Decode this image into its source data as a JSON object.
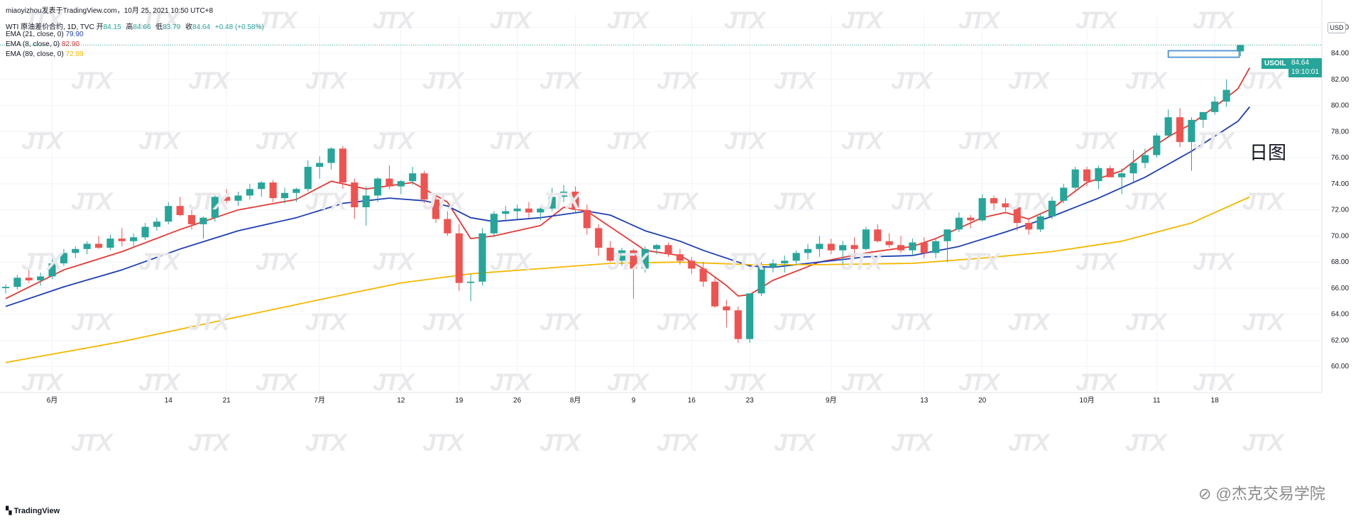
{
  "header": {
    "publisher": "miaoyizhou发表于TradingView.com，10月 25, 2021 10:50 UTC+8",
    "symbol_line": "WTI 原油差价合约, 1D, TVC",
    "ohlc": {
      "open_label": "开",
      "open": "84.15",
      "high_label": "高",
      "high": "84.66",
      "low_label": "低",
      "low": "83.79",
      "close_label": "收",
      "close": "84.64",
      "change": "+0.48 (+0.58%)"
    },
    "indicators": [
      {
        "label": "EMA (21, close, 0)",
        "value": "79.90",
        "color": "#1e3fb4"
      },
      {
        "label": "EMA (8, close, 0)",
        "value": "82.90",
        "color": "#e53935"
      },
      {
        "label": "EMA (89, close, 0)",
        "value": "72.99",
        "color": "#f5b800"
      }
    ]
  },
  "price_axis": {
    "unit": "USD"
  },
  "price_tag": {
    "symbol": "USOIL",
    "price": "84.64",
    "countdown": "19:10:01"
  },
  "annotation": "日图",
  "watermark": "JTX",
  "footer": {
    "logo": "TradingView",
    "credit": "@杰克交易学院"
  },
  "colors": {
    "up": "#26a69a",
    "down": "#ef5350",
    "grid": "#f0f3fa",
    "last_price_line": "#26a69a"
  },
  "chart_data": {
    "type": "candlestick",
    "ylim": [
      58,
      87
    ],
    "y_ticks": [
      60,
      62,
      64,
      66,
      68,
      70,
      72,
      74,
      76,
      78,
      80,
      82,
      84,
      86
    ],
    "x_labels": [
      {
        "index": 4,
        "label": "6月"
      },
      {
        "index": 14,
        "label": "14"
      },
      {
        "index": 19,
        "label": "21"
      },
      {
        "index": 27,
        "label": "7月"
      },
      {
        "index": 34,
        "label": "12"
      },
      {
        "index": 39,
        "label": "19"
      },
      {
        "index": 44,
        "label": "26"
      },
      {
        "index": 49,
        "label": "8月"
      },
      {
        "index": 54,
        "label": "9"
      },
      {
        "index": 59,
        "label": "16"
      },
      {
        "index": 64,
        "label": "23"
      },
      {
        "index": 71,
        "label": "9月"
      },
      {
        "index": 79,
        "label": "13"
      },
      {
        "index": 84,
        "label": "20"
      },
      {
        "index": 93,
        "label": "10月"
      },
      {
        "index": 99,
        "label": "11"
      },
      {
        "index": 104,
        "label": "18"
      }
    ],
    "last_price": 84.64,
    "candles": [
      [
        66.0,
        66.3,
        65.6,
        66.1
      ],
      [
        66.1,
        67.0,
        65.9,
        66.8
      ],
      [
        66.8,
        67.4,
        66.4,
        66.6
      ],
      [
        66.6,
        67.2,
        66.2,
        66.9
      ],
      [
        66.9,
        68.3,
        66.7,
        67.9
      ],
      [
        67.9,
        69.0,
        67.7,
        68.7
      ],
      [
        68.7,
        69.2,
        68.3,
        69.0
      ],
      [
        69.0,
        69.6,
        68.6,
        69.4
      ],
      [
        69.4,
        70.0,
        69.0,
        69.1
      ],
      [
        69.1,
        70.1,
        68.9,
        69.8
      ],
      [
        69.8,
        70.6,
        69.2,
        69.6
      ],
      [
        69.6,
        70.2,
        69.1,
        69.9
      ],
      [
        69.9,
        71.0,
        69.7,
        70.7
      ],
      [
        70.7,
        71.4,
        70.4,
        71.1
      ],
      [
        71.1,
        72.6,
        70.9,
        72.3
      ],
      [
        72.3,
        73.0,
        71.5,
        71.6
      ],
      [
        71.6,
        72.0,
        70.5,
        70.9
      ],
      [
        70.9,
        71.5,
        69.8,
        71.4
      ],
      [
        71.4,
        73.2,
        71.1,
        73.0
      ],
      [
        73.0,
        73.6,
        72.5,
        72.7
      ],
      [
        72.7,
        73.4,
        72.3,
        73.1
      ],
      [
        73.1,
        74.0,
        72.8,
        73.6
      ],
      [
        73.6,
        74.2,
        73.0,
        74.1
      ],
      [
        74.1,
        74.3,
        72.6,
        72.9
      ],
      [
        72.9,
        73.7,
        72.5,
        73.3
      ],
      [
        73.3,
        73.7,
        72.6,
        73.6
      ],
      [
        73.6,
        75.8,
        73.4,
        75.3
      ],
      [
        75.3,
        76.1,
        74.4,
        75.6
      ],
      [
        75.6,
        76.8,
        75.1,
        76.7
      ],
      [
        76.7,
        76.9,
        73.6,
        74.1
      ],
      [
        74.1,
        74.4,
        71.3,
        72.2
      ],
      [
        72.2,
        73.8,
        70.8,
        73.1
      ],
      [
        73.1,
        74.5,
        72.6,
        74.4
      ],
      [
        74.4,
        75.4,
        73.6,
        73.8
      ],
      [
        73.8,
        74.3,
        73.2,
        74.2
      ],
      [
        74.2,
        75.3,
        73.9,
        74.8
      ],
      [
        74.8,
        75.0,
        72.5,
        72.8
      ],
      [
        72.8,
        73.0,
        71.0,
        71.3
      ],
      [
        71.3,
        71.9,
        70.0,
        70.2
      ],
      [
        70.2,
        70.9,
        65.8,
        66.4
      ],
      [
        66.4,
        67.1,
        65.0,
        66.5
      ],
      [
        66.5,
        70.6,
        66.2,
        70.2
      ],
      [
        70.2,
        71.9,
        69.9,
        71.7
      ],
      [
        71.7,
        72.3,
        71.1,
        71.9
      ],
      [
        71.9,
        72.4,
        71.3,
        72.1
      ],
      [
        72.1,
        72.6,
        71.4,
        71.8
      ],
      [
        71.8,
        72.2,
        71.2,
        72.1
      ],
      [
        72.1,
        73.7,
        71.9,
        73.0
      ],
      [
        73.0,
        73.9,
        72.6,
        73.4
      ],
      [
        73.4,
        73.8,
        71.8,
        72.0
      ],
      [
        72.0,
        72.4,
        70.1,
        70.6
      ],
      [
        70.6,
        70.9,
        68.5,
        69.1
      ],
      [
        69.1,
        69.6,
        68.0,
        68.1
      ],
      [
        68.1,
        69.1,
        67.7,
        68.9
      ],
      [
        68.9,
        69.0,
        65.2,
        67.5
      ],
      [
        67.5,
        69.2,
        67.2,
        69.0
      ],
      [
        69.0,
        69.4,
        68.6,
        69.3
      ],
      [
        69.3,
        69.5,
        68.4,
        68.6
      ],
      [
        68.6,
        69.0,
        67.8,
        68.1
      ],
      [
        68.1,
        68.4,
        67.1,
        67.5
      ],
      [
        67.5,
        68.0,
        66.1,
        66.5
      ],
      [
        66.5,
        66.9,
        64.5,
        64.6
      ],
      [
        64.6,
        65.1,
        63.0,
        64.3
      ],
      [
        64.3,
        64.6,
        61.8,
        62.1
      ],
      [
        62.1,
        65.6,
        61.8,
        65.6
      ],
      [
        65.6,
        68.0,
        65.4,
        67.6
      ],
      [
        67.6,
        68.2,
        67.2,
        67.9
      ],
      [
        67.9,
        68.5,
        67.2,
        68.1
      ],
      [
        68.1,
        68.9,
        67.8,
        68.7
      ],
      [
        68.7,
        69.4,
        68.2,
        69.0
      ],
      [
        69.0,
        70.0,
        68.4,
        69.4
      ],
      [
        69.4,
        69.8,
        68.6,
        68.9
      ],
      [
        68.9,
        69.6,
        67.5,
        69.3
      ],
      [
        69.3,
        69.9,
        68.3,
        69.0
      ],
      [
        69.0,
        70.7,
        68.9,
        70.5
      ],
      [
        70.5,
        70.9,
        69.5,
        69.6
      ],
      [
        69.6,
        70.2,
        69.1,
        69.3
      ],
      [
        69.3,
        70.0,
        68.7,
        68.9
      ],
      [
        68.9,
        69.8,
        68.5,
        69.5
      ],
      [
        69.5,
        69.9,
        68.3,
        68.7
      ],
      [
        68.7,
        69.8,
        68.3,
        69.6
      ],
      [
        69.6,
        70.3,
        68.0,
        70.5
      ],
      [
        70.5,
        71.8,
        70.3,
        71.4
      ],
      [
        71.4,
        71.6,
        70.6,
        71.2
      ],
      [
        71.2,
        73.2,
        71.1,
        72.9
      ],
      [
        72.9,
        73.1,
        72.0,
        72.5
      ],
      [
        72.5,
        72.9,
        71.9,
        72.2
      ],
      [
        72.2,
        72.5,
        70.4,
        71.0
      ],
      [
        71.0,
        71.3,
        70.1,
        70.5
      ],
      [
        70.5,
        71.7,
        70.3,
        71.5
      ],
      [
        71.5,
        73.0,
        71.3,
        72.7
      ],
      [
        72.7,
        74.0,
        72.5,
        73.7
      ],
      [
        73.7,
        75.3,
        73.5,
        75.1
      ],
      [
        75.1,
        75.3,
        73.8,
        74.2
      ],
      [
        74.2,
        75.4,
        73.6,
        75.2
      ],
      [
        75.2,
        75.4,
        74.5,
        74.5
      ],
      [
        74.5,
        75.2,
        73.2,
        74.8
      ],
      [
        74.8,
        76.6,
        74.1,
        75.6
      ],
      [
        75.6,
        76.7,
        75.2,
        76.2
      ],
      [
        76.2,
        77.9,
        76.0,
        77.7
      ],
      [
        77.7,
        79.7,
        77.5,
        79.1
      ],
      [
        79.1,
        79.8,
        76.8,
        77.2
      ],
      [
        77.2,
        79.1,
        75.0,
        78.9
      ],
      [
        78.9,
        79.4,
        78.3,
        79.5
      ],
      [
        79.5,
        80.7,
        79.3,
        80.3
      ],
      [
        80.3,
        82.0,
        79.9,
        81.2
      ]
    ],
    "ema": [
      {
        "label": "EMA 8",
        "color": "#e53935",
        "values": [
          [
            0,
            65.2
          ],
          [
            5,
            67.4
          ],
          [
            10,
            68.8
          ],
          [
            15,
            70.5
          ],
          [
            20,
            72.0
          ],
          [
            25,
            72.8
          ],
          [
            28,
            74.2
          ],
          [
            31,
            73.6
          ],
          [
            35,
            74.1
          ],
          [
            38,
            72.6
          ],
          [
            40,
            69.8
          ],
          [
            42,
            70.0
          ],
          [
            46,
            70.8
          ],
          [
            48,
            72.2
          ],
          [
            50,
            71.9
          ],
          [
            52,
            70.7
          ],
          [
            55,
            68.9
          ],
          [
            58,
            68.5
          ],
          [
            60,
            67.5
          ],
          [
            62,
            66.2
          ],
          [
            63,
            65.4
          ],
          [
            64,
            65.5
          ],
          [
            66,
            66.6
          ],
          [
            70,
            68.0
          ],
          [
            74,
            68.7
          ],
          [
            78,
            69.2
          ],
          [
            80,
            69.8
          ],
          [
            84,
            71.4
          ],
          [
            86,
            71.8
          ],
          [
            88,
            71.3
          ],
          [
            90,
            72.1
          ],
          [
            93,
            74.1
          ],
          [
            96,
            75.0
          ],
          [
            98,
            76.4
          ],
          [
            100,
            77.6
          ],
          [
            102,
            78.6
          ],
          [
            104,
            79.9
          ],
          [
            106,
            81.3
          ],
          [
            107,
            82.9
          ]
        ]
      },
      {
        "label": "EMA 21",
        "color": "#1e3fb4",
        "values": [
          [
            0,
            64.6
          ],
          [
            5,
            66.1
          ],
          [
            10,
            67.4
          ],
          [
            15,
            69.0
          ],
          [
            20,
            70.4
          ],
          [
            25,
            71.4
          ],
          [
            29,
            72.5
          ],
          [
            33,
            72.9
          ],
          [
            36,
            72.7
          ],
          [
            38,
            72.3
          ],
          [
            40,
            71.4
          ],
          [
            42,
            71.1
          ],
          [
            46,
            71.4
          ],
          [
            50,
            71.9
          ],
          [
            52,
            71.6
          ],
          [
            55,
            70.4
          ],
          [
            58,
            69.6
          ],
          [
            60,
            68.9
          ],
          [
            62,
            68.3
          ],
          [
            64,
            67.7
          ],
          [
            66,
            67.6
          ],
          [
            70,
            68.0
          ],
          [
            74,
            68.4
          ],
          [
            78,
            68.5
          ],
          [
            82,
            69.2
          ],
          [
            86,
            70.3
          ],
          [
            90,
            71.5
          ],
          [
            94,
            72.9
          ],
          [
            98,
            74.5
          ],
          [
            102,
            76.5
          ],
          [
            106,
            78.8
          ],
          [
            107,
            79.9
          ]
        ]
      },
      {
        "label": "EMA 89",
        "color": "#f5b800",
        "values": [
          [
            0,
            60.3
          ],
          [
            10,
            61.9
          ],
          [
            20,
            63.8
          ],
          [
            28,
            65.3
          ],
          [
            34,
            66.4
          ],
          [
            40,
            67.1
          ],
          [
            46,
            67.5
          ],
          [
            52,
            67.9
          ],
          [
            58,
            68.0
          ],
          [
            64,
            67.8
          ],
          [
            70,
            67.8
          ],
          [
            78,
            67.9
          ],
          [
            84,
            68.3
          ],
          [
            90,
            68.8
          ],
          [
            96,
            69.6
          ],
          [
            102,
            71.0
          ],
          [
            107,
            72.99
          ]
        ]
      }
    ]
  }
}
